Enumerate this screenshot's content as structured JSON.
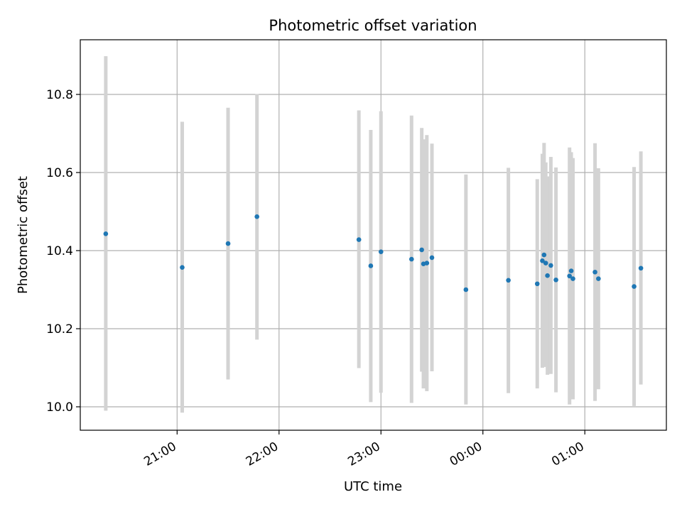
{
  "chart_data": {
    "type": "scatter",
    "title": "Photometric offset variation",
    "xlabel": "UTC time",
    "ylabel": "Photometric offset",
    "x_ticks": [
      "21:00",
      "22:00",
      "23:00",
      "00:00",
      "01:00"
    ],
    "y_ticks": [
      "10.0",
      "10.2",
      "10.4",
      "10.6",
      "10.8"
    ],
    "xlim": [
      "20:03",
      "01:48"
    ],
    "ylim": [
      9.94,
      10.94
    ],
    "grid": true,
    "colors": {
      "point": "#1f77b4",
      "errorbar": "#d3d3d3",
      "grid": "#b0b0b0"
    },
    "points": [
      {
        "x": "20:18",
        "y": 10.443,
        "ylow": 9.99,
        "yhigh": 10.898
      },
      {
        "x": "21:03",
        "y": 10.357,
        "ylow": 9.985,
        "yhigh": 10.73
      },
      {
        "x": "21:30",
        "y": 10.418,
        "ylow": 10.07,
        "yhigh": 10.766
      },
      {
        "x": "21:47",
        "y": 10.487,
        "ylow": 10.172,
        "yhigh": 10.801
      },
      {
        "x": "22:47",
        "y": 10.428,
        "ylow": 10.099,
        "yhigh": 10.759
      },
      {
        "x": "22:54",
        "y": 10.361,
        "ylow": 10.012,
        "yhigh": 10.709
      },
      {
        "x": "23:00",
        "y": 10.397,
        "ylow": 10.036,
        "yhigh": 10.757
      },
      {
        "x": "23:18",
        "y": 10.378,
        "ylow": 10.01,
        "yhigh": 10.746
      },
      {
        "x": "23:24",
        "y": 10.402,
        "ylow": 10.09,
        "yhigh": 10.714
      },
      {
        "x": "23:25",
        "y": 10.366,
        "ylow": 10.047,
        "yhigh": 10.685
      },
      {
        "x": "23:27",
        "y": 10.368,
        "ylow": 10.04,
        "yhigh": 10.696
      },
      {
        "x": "23:30",
        "y": 10.382,
        "ylow": 10.091,
        "yhigh": 10.674
      },
      {
        "x": "23:50",
        "y": 10.3,
        "ylow": 10.006,
        "yhigh": 10.595
      },
      {
        "x": "00:15",
        "y": 10.324,
        "ylow": 10.035,
        "yhigh": 10.612
      },
      {
        "x": "00:32",
        "y": 10.315,
        "ylow": 10.047,
        "yhigh": 10.583
      },
      {
        "x": "00:35",
        "y": 10.374,
        "ylow": 10.1,
        "yhigh": 10.648
      },
      {
        "x": "00:36",
        "y": 10.389,
        "ylow": 10.102,
        "yhigh": 10.676
      },
      {
        "x": "00:37",
        "y": 10.368,
        "ylow": 10.11,
        "yhigh": 10.626
      },
      {
        "x": "00:38",
        "y": 10.336,
        "ylow": 10.082,
        "yhigh": 10.59
      },
      {
        "x": "00:40",
        "y": 10.362,
        "ylow": 10.084,
        "yhigh": 10.64
      },
      {
        "x": "00:43",
        "y": 10.325,
        "ylow": 10.037,
        "yhigh": 10.613
      },
      {
        "x": "00:51",
        "y": 10.335,
        "ylow": 10.006,
        "yhigh": 10.664
      },
      {
        "x": "00:52",
        "y": 10.348,
        "ylow": 10.044,
        "yhigh": 10.652
      },
      {
        "x": "00:53",
        "y": 10.328,
        "ylow": 10.019,
        "yhigh": 10.637
      },
      {
        "x": "01:06",
        "y": 10.345,
        "ylow": 10.015,
        "yhigh": 10.675
      },
      {
        "x": "01:08",
        "y": 10.328,
        "ylow": 10.045,
        "yhigh": 10.611
      },
      {
        "x": "01:29",
        "y": 10.308,
        "ylow": 10.002,
        "yhigh": 10.614
      },
      {
        "x": "01:33",
        "y": 10.355,
        "ylow": 10.057,
        "yhigh": 10.654
      }
    ]
  }
}
